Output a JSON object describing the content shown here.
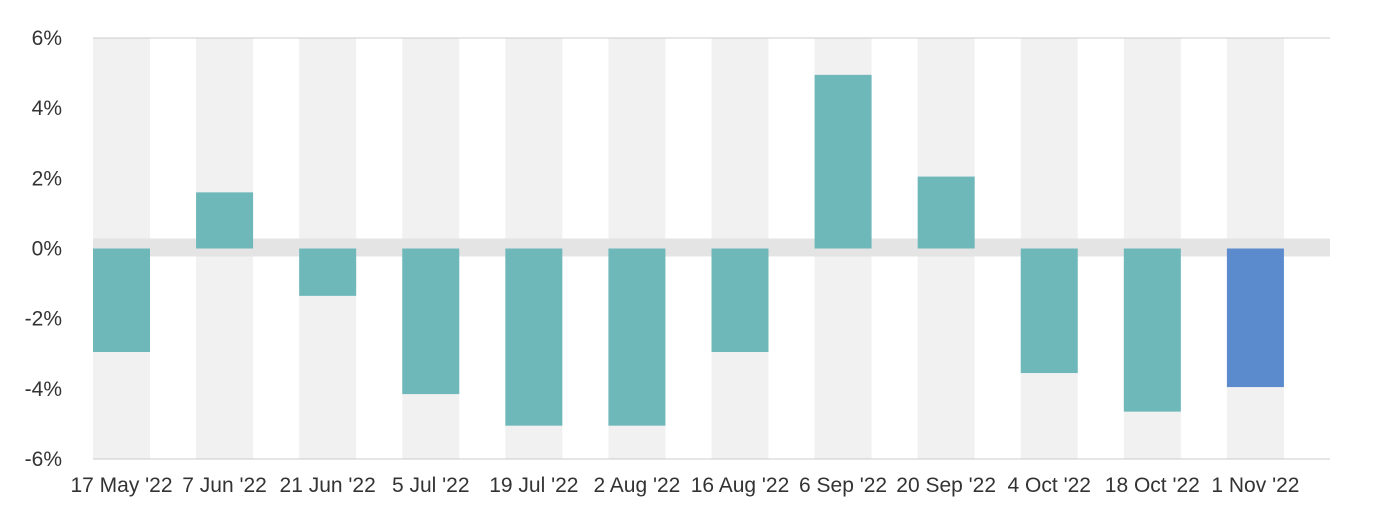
{
  "chart_data": {
    "type": "bar",
    "title": "",
    "xlabel": "",
    "ylabel": "",
    "categories": [
      "17 May '22",
      "7 Jun '22",
      "21 Jun '22",
      "5 Jul '22",
      "19 Jul '22",
      "2 Aug '22",
      "16 Aug '22",
      "6 Sep '22",
      "20 Sep '22",
      "4 Oct '22",
      "18 Oct '22",
      "1 Nov '22"
    ],
    "values": [
      -2.95,
      1.6,
      -1.35,
      -4.15,
      -5.05,
      -5.05,
      -2.95,
      4.95,
      2.05,
      -3.55,
      -4.65,
      -3.95
    ],
    "ylim": [
      -6,
      6
    ],
    "yticks": [
      6,
      4,
      2,
      0,
      -2,
      -4,
      -6
    ],
    "ytick_labels": [
      "6%",
      "4%",
      "2%",
      "0%",
      "-2%",
      "-4%",
      "-6%"
    ],
    "grid": "alternating vertical bands",
    "legend": "none",
    "colors": {
      "bar": "#6fb8ba",
      "highlight_bar": "#5b8bcd",
      "band": "#f1f1f1",
      "zero_band": "#e4e4e4",
      "axis": "#cccccc"
    },
    "highlight_index": 11
  }
}
